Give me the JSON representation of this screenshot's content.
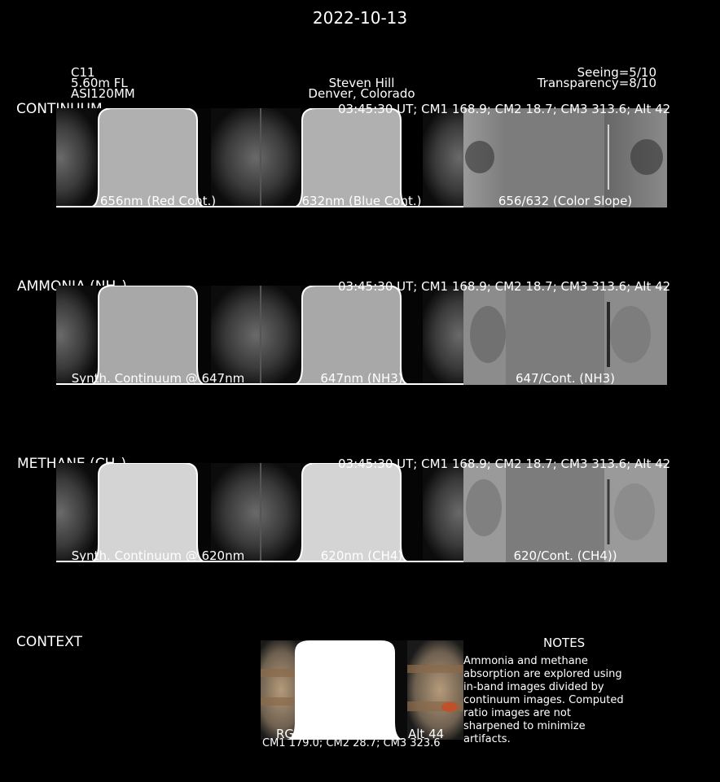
{
  "title": "2022-10-13",
  "header": {
    "left": [
      "C11",
      "5.60m FL",
      "ASI120MM"
    ],
    "center": [
      "Steven Hill",
      "Denver, Colorado"
    ],
    "right": [
      "Seeing=5/10",
      "Transparency=8/10"
    ]
  },
  "rows": [
    {
      "label": "CONTINUUM",
      "label_sub": "",
      "label_end": "",
      "timestamp": "03:45:30 UT; CM1 168.9; CM2 18.7; CM3 313.6; Alt 42",
      "captions": [
        "656nm (Red Cont.)",
        "632nm (Blue Cont.)",
        "656/632 (Color Slope)"
      ],
      "gray": "#b0b0b0"
    },
    {
      "label": "AMMONIA (NH",
      "label_sub": "3",
      "label_end": ")",
      "timestamp": "03:45:30 UT; CM1 168.9; CM2 18.7; CM3 313.6; Alt 42",
      "captions": [
        "Synth. Continuum @ 647nm",
        "647nm (NH3)",
        "647/Cont. (NH3)"
      ],
      "gray": "#a8a8a8"
    },
    {
      "label": "METHANE (CH",
      "label_sub": "4",
      "label_end": ")",
      "timestamp": "03:45:30 UT; CM1 168.9; CM2 18.7; CM3 313.6; Alt 42",
      "captions": [
        "Synth. Continuum @ 620nm",
        "620nm (CH4)",
        "620/Cont. (CH4))"
      ],
      "gray": "#d4d4d4"
    }
  ],
  "context": {
    "label": "CONTEXT",
    "caption_top": "RGB",
    "caption_alt": "Alt 44",
    "caption_cm": "CM1 179.0; CM2 28.7; CM3 323.6"
  },
  "notes": {
    "heading": "NOTES",
    "body": "Ammonia and methane absorption are explored using in-band images divided by continuum images. Computed ratio images are not sharpened to minimize artifacts."
  }
}
